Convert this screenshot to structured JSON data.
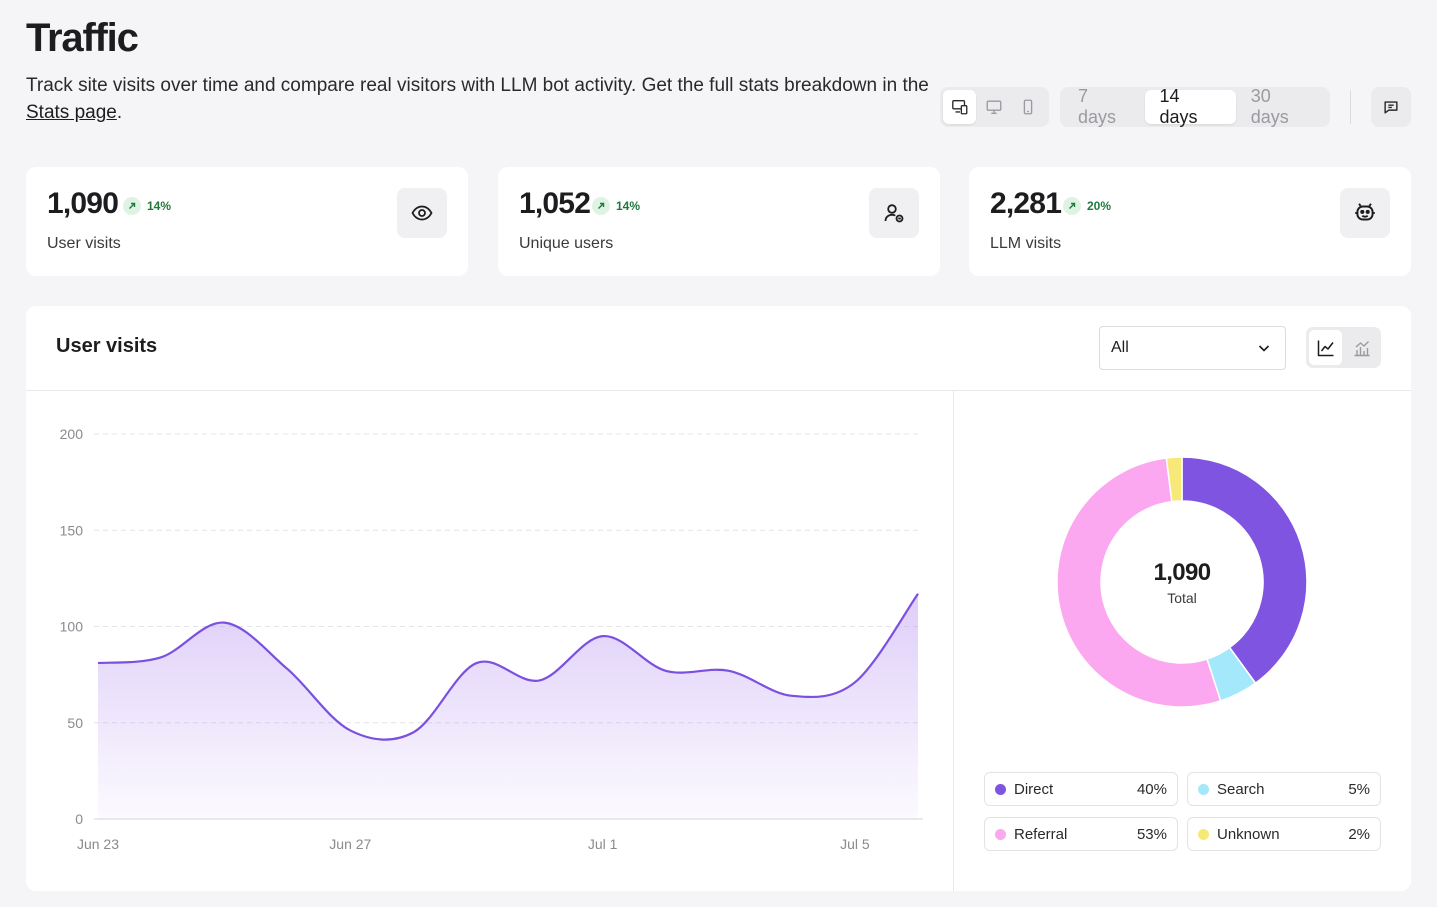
{
  "header": {
    "title": "Traffic",
    "description_before": "Track site visits over time and compare real visitors with LLM bot activity. Get the full stats breakdown in the ",
    "description_link": "Stats page",
    "description_after": ".",
    "device_filter": {
      "options": [
        "all-devices-icon",
        "desktop-icon",
        "mobile-icon"
      ],
      "selected": "all-devices-icon"
    },
    "ranges": [
      "7 days",
      "14 days",
      "30 days"
    ],
    "selected_range": "14 days"
  },
  "stats": [
    {
      "value": "1,090",
      "delta": "14%",
      "label": "User visits",
      "icon": "eye-icon"
    },
    {
      "value": "1,052",
      "delta": "14%",
      "label": "Unique users",
      "icon": "user-icon"
    },
    {
      "value": "2,281",
      "delta": "20%",
      "label": "LLM visits",
      "icon": "robot-icon"
    }
  ],
  "panel": {
    "title": "User visits",
    "filter_value": "All",
    "view_modes": [
      "line-chart-icon",
      "bar-chart-icon"
    ],
    "selected_view": "line-chart-icon"
  },
  "chart_data": [
    {
      "type": "area",
      "title": "User visits",
      "x_tick_labels": [
        "Jun 23",
        "Jun 27",
        "Jul 1",
        "Jul 5"
      ],
      "x": [
        "Jun 23",
        "Jun 24",
        "Jun 25",
        "Jun 26",
        "Jun 27",
        "Jun 28",
        "Jun 29",
        "Jun 30",
        "Jul 1",
        "Jul 2",
        "Jul 3",
        "Jul 4",
        "Jul 5",
        "Jul 6"
      ],
      "series": [
        {
          "values": [
            81,
            84,
            102,
            78,
            46,
            45,
            81,
            72,
            95,
            77,
            77,
            64,
            71,
            117
          ]
        }
      ],
      "ylim": [
        0,
        200
      ],
      "yticks": [
        0,
        50,
        100,
        150,
        200
      ],
      "grid": true,
      "color": "#7b4fe0"
    },
    {
      "type": "pie",
      "variant": "donut",
      "center_value": "1,090",
      "center_label": "Total",
      "slices": [
        {
          "label": "Direct",
          "percent": "40%",
          "value": 40,
          "color": "#7f54e0"
        },
        {
          "label": "Search",
          "percent": "5%",
          "value": 5,
          "color": "#a3e8fb"
        },
        {
          "label": "Referral",
          "percent": "53%",
          "value": 53,
          "color": "#fba8f0"
        },
        {
          "label": "Unknown",
          "percent": "2%",
          "value": 2,
          "color": "#f7e977"
        }
      ]
    }
  ]
}
